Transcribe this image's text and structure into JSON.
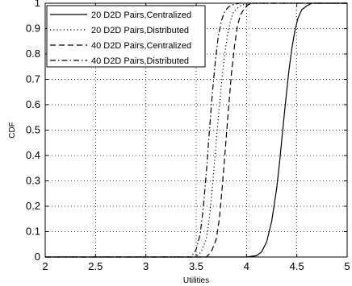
{
  "chart_data": {
    "type": "line",
    "title": "",
    "xlabel": "Utilities",
    "ylabel": "CDF",
    "xlim": [
      2,
      5
    ],
    "ylim": [
      0,
      1
    ],
    "grid": true,
    "grid_style": "dotted",
    "legend_position": "top-left",
    "x_ticks": [
      2,
      2.5,
      3,
      3.5,
      4,
      4.5,
      5
    ],
    "x_tick_labels": [
      "2",
      "2.5",
      "3",
      "3.5",
      "4",
      "4.5",
      "5"
    ],
    "y_ticks": [
      0,
      0.1,
      0.2,
      0.3,
      0.4,
      0.5,
      0.6,
      0.7,
      0.8,
      0.9,
      1
    ],
    "y_tick_labels": [
      "0",
      "0.1",
      "0.2",
      "0.3",
      "0.4",
      "0.5",
      "0.6",
      "0.7",
      "0.8",
      "0.9",
      "1"
    ],
    "series": [
      {
        "name": "20 D2D Pairs,Centralized",
        "line_style": "solid",
        "color": "#000000",
        "x": [
          2.0,
          4.0,
          4.1,
          4.15,
          4.2,
          4.25,
          4.3,
          4.33,
          4.36,
          4.39,
          4.42,
          4.45,
          4.48,
          4.51,
          4.55,
          4.6,
          4.65,
          5.0
        ],
        "y": [
          0.0,
          0.0,
          0.005,
          0.02,
          0.06,
          0.14,
          0.27,
          0.38,
          0.5,
          0.62,
          0.73,
          0.82,
          0.89,
          0.94,
          0.975,
          0.99,
          1.0,
          1.0
        ]
      },
      {
        "name": "20 D2D Pairs,Distributed",
        "line_style": "dotted",
        "color": "#000000",
        "x": [
          2.0,
          3.5,
          3.55,
          3.6,
          3.63,
          3.66,
          3.69,
          3.72,
          3.75,
          3.78,
          3.81,
          3.84,
          3.87,
          3.92,
          3.97,
          4.05,
          5.0
        ],
        "y": [
          0.0,
          0.0,
          0.02,
          0.07,
          0.15,
          0.27,
          0.41,
          0.55,
          0.68,
          0.79,
          0.87,
          0.93,
          0.965,
          0.985,
          0.995,
          1.0,
          1.0
        ]
      },
      {
        "name": "40 D2D Pairs,Centralized",
        "line_style": "dashed",
        "color": "#000000",
        "x": [
          2.0,
          3.6,
          3.65,
          3.7,
          3.73,
          3.76,
          3.79,
          3.82,
          3.85,
          3.88,
          3.91,
          3.94,
          3.98,
          4.02,
          4.08,
          5.0
        ],
        "y": [
          0.0,
          0.0,
          0.02,
          0.07,
          0.15,
          0.28,
          0.43,
          0.58,
          0.72,
          0.83,
          0.91,
          0.955,
          0.98,
          0.995,
          1.0,
          1.0
        ]
      },
      {
        "name": "40 D2D Pairs,Distributed",
        "line_style": "dashdot",
        "color": "#000000",
        "x": [
          2.0,
          3.45,
          3.5,
          3.54,
          3.57,
          3.6,
          3.63,
          3.66,
          3.69,
          3.72,
          3.75,
          3.78,
          3.82,
          3.87,
          3.93,
          5.0
        ],
        "y": [
          0.0,
          0.0,
          0.03,
          0.09,
          0.19,
          0.33,
          0.49,
          0.64,
          0.77,
          0.87,
          0.93,
          0.965,
          0.985,
          0.995,
          1.0,
          1.0
        ]
      }
    ]
  }
}
